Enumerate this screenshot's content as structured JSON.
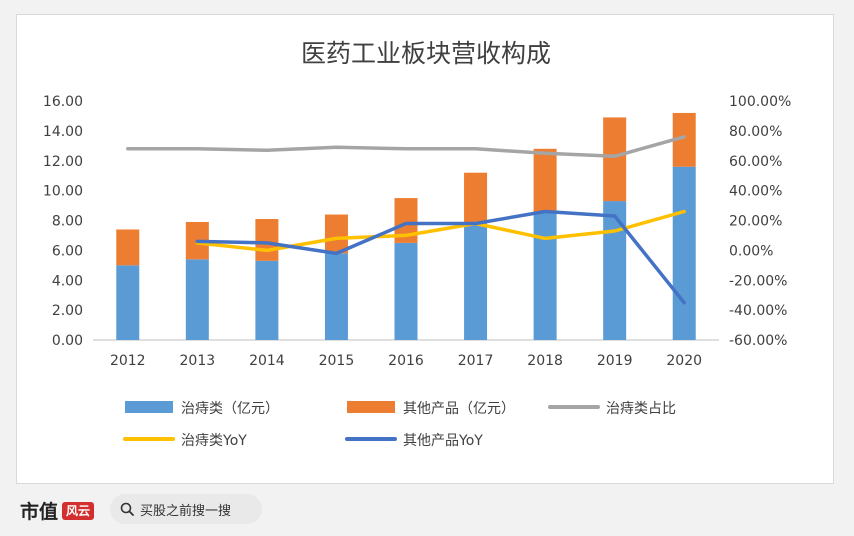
{
  "chart_data": {
    "type": "bar",
    "title": "医药工业板块营收构成",
    "categories": [
      "2012",
      "2013",
      "2014",
      "2015",
      "2016",
      "2017",
      "2018",
      "2019",
      "2020"
    ],
    "y_left_ticks": [
      "0.00",
      "2.00",
      "4.00",
      "6.00",
      "8.00",
      "10.00",
      "12.00",
      "14.00",
      "16.00"
    ],
    "y_right_ticks": [
      "-60.00%",
      "-40.00%",
      "-20.00%",
      "0.00%",
      "20.00%",
      "40.00%",
      "60.00%",
      "80.00%",
      "100.00%"
    ],
    "ylim_left": [
      0,
      16
    ],
    "ylim_right": [
      -60,
      100
    ],
    "series": [
      {
        "name": "治痔类（亿元）",
        "kind": "bar",
        "stack": true,
        "color": "#5b9bd5",
        "values": [
          5.0,
          5.4,
          5.3,
          5.8,
          6.5,
          7.8,
          8.5,
          9.3,
          11.6
        ]
      },
      {
        "name": "其他产品（亿元）",
        "kind": "bar",
        "stack": true,
        "color": "#ed7d31",
        "values": [
          2.4,
          2.5,
          2.8,
          2.6,
          3.0,
          3.4,
          4.3,
          5.6,
          3.6
        ]
      },
      {
        "name": "治痔类占比",
        "kind": "line",
        "axis": "right",
        "color": "#a5a5a5",
        "values": [
          68,
          68,
          67,
          69,
          68,
          68,
          65,
          63,
          76
        ]
      },
      {
        "name": "治痔类YoY",
        "kind": "line",
        "axis": "right",
        "color": "#ffc000",
        "values": [
          null,
          5,
          0,
          8,
          10,
          18,
          8,
          13,
          26
        ]
      },
      {
        "name": "其他产品YoY",
        "kind": "line",
        "axis": "right",
        "color": "#4472c4",
        "values": [
          null,
          6,
          5,
          -2,
          18,
          18,
          26,
          23,
          -35
        ]
      }
    ],
    "legend_position": "bottom",
    "grid": false
  },
  "footer": {
    "brand": "市值",
    "brand_logo": "风云",
    "search_placeholder": "买股之前搜一搜",
    "watermark": "市值风云"
  }
}
